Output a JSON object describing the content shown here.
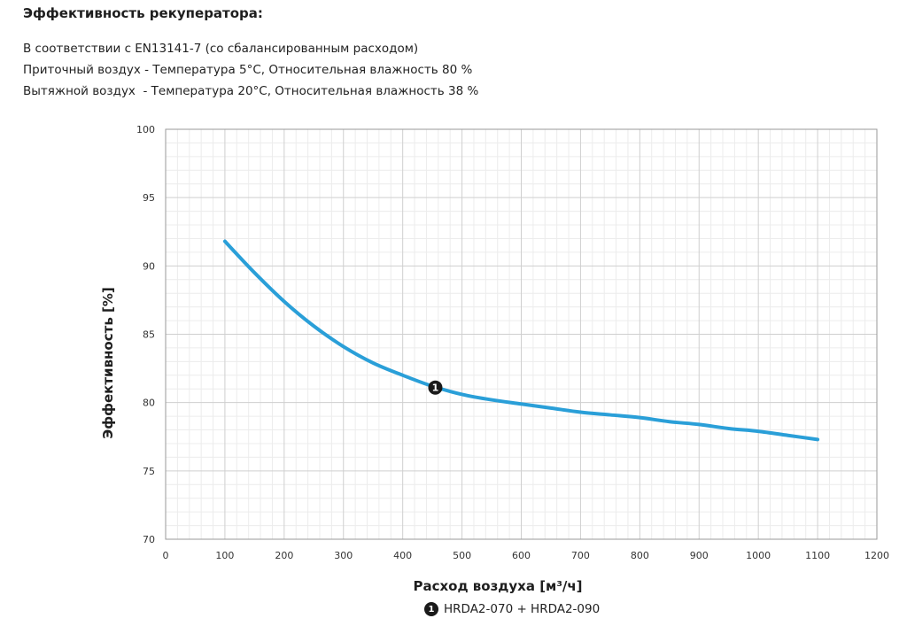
{
  "heading": "Эффективность рекуператора:",
  "conditions": [
    "В соответствии с EN13141-7 (со сбалансированным расходом)",
    "Приточный воздух - Температура 5°C, Относительная влажность 80 %",
    "Вытяжной воздух  - Температура 20°C, Относительная влажность 38 %"
  ],
  "chart_data": {
    "type": "line",
    "title": "",
    "xlabel": "Расход воздуха [м³/ч]",
    "ylabel": "Эффективность  [%]",
    "xlim": [
      0,
      1200
    ],
    "ylim": [
      70,
      100
    ],
    "xticks": [
      0,
      100,
      200,
      300,
      400,
      500,
      600,
      700,
      800,
      900,
      1000,
      1100,
      1200
    ],
    "yticks": [
      70,
      75,
      80,
      85,
      90,
      95,
      100
    ],
    "grid": true,
    "legend_placement": "bottom-center",
    "series": [
      {
        "name": "HRDA2-070 + HRDA2-090",
        "marker_label": "1",
        "marker_at": [
          455,
          81.1
        ],
        "color": "#2a9fd8",
        "x": [
          100,
          150,
          200,
          250,
          300,
          350,
          400,
          450,
          500,
          550,
          600,
          650,
          700,
          750,
          800,
          850,
          900,
          950,
          1000,
          1050,
          1100
        ],
        "y": [
          91.8,
          89.5,
          87.4,
          85.6,
          84.1,
          82.9,
          82.0,
          81.2,
          80.6,
          80.2,
          79.9,
          79.6,
          79.3,
          79.1,
          78.9,
          78.6,
          78.4,
          78.1,
          77.9,
          77.6,
          77.3
        ]
      }
    ]
  }
}
